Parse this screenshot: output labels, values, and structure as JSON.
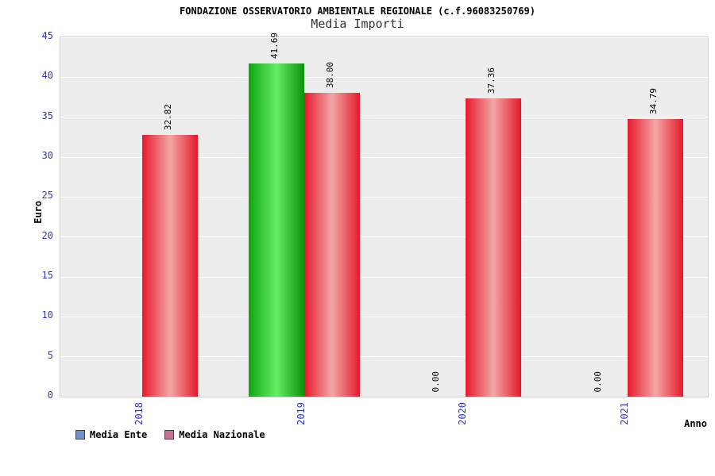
{
  "chart_data": {
    "type": "bar",
    "title": "FONDAZIONE OSSERVATORIO AMBIENTALE REGIONALE (c.f.96083250769)",
    "subtitle": "Media Importi",
    "xlabel": "Anno",
    "ylabel": "Euro",
    "ylim": [
      0,
      45
    ],
    "ytick_step": 5,
    "grid": true,
    "legend_position": "bottom-left",
    "categories": [
      "2018",
      "2019",
      "2020",
      "2021"
    ],
    "series": [
      {
        "name": "Media Ente",
        "legend_color": "#6e8fc9",
        "values": [
          null,
          41.69,
          0,
          0
        ],
        "value_labels": [
          "",
          "41.69",
          "0.00",
          "0.00"
        ],
        "bar_gradient": [
          "#0fa50f",
          "#63ee63",
          "#0c930c"
        ]
      },
      {
        "name": "Media Nazionale",
        "legend_color": "#c9708c",
        "values": [
          32.82,
          38.0,
          37.36,
          34.79
        ],
        "value_labels": [
          "32.82",
          "38.00",
          "37.36",
          "34.79"
        ],
        "bar_gradient": [
          "#e6192b",
          "#f2a6a6",
          "#e6192b"
        ]
      }
    ],
    "colors": {
      "plot_bg": "#ededed",
      "grid": "#ffffff",
      "tick_label": "#3333cc",
      "value_label": "#000000",
      "plot_border": "#d4d4d4"
    }
  }
}
